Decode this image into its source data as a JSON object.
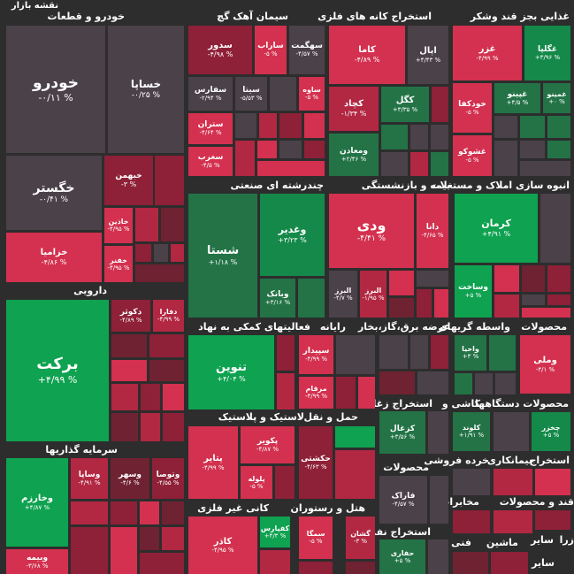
{
  "header": {
    "title": "نقشه بازار"
  },
  "sectors": [
    {
      "name": "sec-auto",
      "label": "خودرو و قطعات"
    },
    {
      "name": "sec-cement",
      "label": "سیمان آهک گچ"
    },
    {
      "name": "sec-metals",
      "label": "استخراج کانه های فلزی"
    },
    {
      "name": "sec-food",
      "label": "غذایی بجز قند وشکر"
    },
    {
      "name": "sec-chemical",
      "label": "چندرشته ای صنعتی"
    },
    {
      "name": "sec-insurance",
      "label": "بیمه و بازنشستگی"
    },
    {
      "name": "sec-realestate",
      "label": "انبوه سازی املاک و مستغلات"
    },
    {
      "name": "sec-pharma",
      "label": "دارویی"
    },
    {
      "name": "sec-support",
      "label": "فعالیتهای کمکی به نهاد"
    },
    {
      "name": "sec-computer",
      "label": "رایانه"
    },
    {
      "name": "sec-utility",
      "label": "عرضه برق،گاز،بخار"
    },
    {
      "name": "sec-brokers",
      "label": "واسطه گریهای"
    },
    {
      "name": "sec-products",
      "label": "محصولات"
    },
    {
      "name": "sec-coal",
      "label": "استخراج زغال"
    },
    {
      "name": "sec-tile",
      "label": "کاشی و"
    },
    {
      "name": "sec-devices",
      "label": "محصولات دستگاهها"
    },
    {
      "name": "sec-rubber",
      "label": "لاستیک و پلاستیک"
    },
    {
      "name": "sec-transport",
      "label": "حمل و نقل"
    },
    {
      "name": "sec-products2",
      "label": "محصولات"
    },
    {
      "name": "sec-retail",
      "label": "خرده فروشی"
    },
    {
      "name": "sec-insure-mining",
      "label": "بیمانکاری"
    },
    {
      "name": "sec-mining2",
      "label": "استخراج"
    },
    {
      "name": "sec-invest",
      "label": "سرمایه گذاریها"
    },
    {
      "name": "sec-nonmetal",
      "label": "کانی غیر فلزی"
    },
    {
      "name": "sec-hotel",
      "label": "هتل و رستوران"
    },
    {
      "name": "sec-oil",
      "label": "استخراج نفت"
    },
    {
      "name": "sec-telecom",
      "label": "مخابرات"
    },
    {
      "name": "sec-sugar",
      "label": "قند و محصولات"
    },
    {
      "name": "sec-tech",
      "label": "فنی و"
    },
    {
      "name": "sec-machinery",
      "label": "ماشین"
    },
    {
      "name": "sec-other1",
      "label": "سایر"
    },
    {
      "name": "sec-other2",
      "label": "زرا"
    },
    {
      "name": "sec-other3",
      "label": "سایر"
    },
    {
      "name": "sec-mahd",
      "label": "محد"
    }
  ],
  "tiles": [
    {
      "name": "khodro",
      "label": "خودرو",
      "pct": "-۰/۱۱ %"
    },
    {
      "name": "khasapa",
      "label": "خساپا",
      "pct": "-۰/۲۵ %"
    },
    {
      "name": "khegostar",
      "label": "خگستر",
      "pct": "-۰/۴۱ %"
    },
    {
      "name": "khebahman",
      "label": "خبهمن",
      "pct": "-۳ %"
    },
    {
      "name": "khazamia",
      "label": "خزامیا",
      "pct": "-۴/۸۶ %"
    },
    {
      "name": "khadizin",
      "label": "خاذین",
      "pct": "-۴/۹۵ %"
    },
    {
      "name": "khafer",
      "label": "خفنر",
      "pct": "-۴/۹۵ %"
    },
    {
      "name": "sedor",
      "label": "سدور",
      "pct": "-۴/۹۸ %"
    },
    {
      "name": "sarab",
      "label": "ساراب",
      "pct": "-۵ %"
    },
    {
      "name": "sahkmat",
      "label": "سهگمت",
      "pct": "-۴/۵۷ %"
    },
    {
      "name": "safars",
      "label": "سفارس",
      "pct": "-۲/۹۴ %"
    },
    {
      "name": "sita",
      "label": "سیتا",
      "pct": "-۵/۵۳ %"
    },
    {
      "name": "saveh",
      "label": "ساوه",
      "pct": "-۵ %"
    },
    {
      "name": "saten",
      "label": "ستران",
      "pct": "-۴/۶۴ %"
    },
    {
      "name": "sefarb",
      "label": "سغرب",
      "pct": "-۴/۵ %"
    },
    {
      "name": "kama",
      "label": "کاما",
      "pct": "-۴/۸۹ %"
    },
    {
      "name": "apal",
      "label": "اپال",
      "pct": "+۴/۴۳ %"
    },
    {
      "name": "kachad",
      "label": "کچاد",
      "pct": "-۱/۳۴ %"
    },
    {
      "name": "kegel",
      "label": "کگل",
      "pct": "+۳/۳۵ %"
    },
    {
      "name": "madan",
      "label": "ومعادن",
      "pct": "+۲/۴۶ %"
    },
    {
      "name": "ghazar",
      "label": "غزر",
      "pct": "-۴/۹۹ %"
    },
    {
      "name": "ghegela",
      "label": "غگلپا",
      "pct": "+۳/۹۶ %"
    },
    {
      "name": "ghpino",
      "label": "غپینو",
      "pct": "+۴/۵ %"
    },
    {
      "name": "ghmino",
      "label": "غمینو",
      "pct": "+۰ %"
    },
    {
      "name": "khodkafa",
      "label": "خودکفا",
      "pct": "-۵ %"
    },
    {
      "name": "ghshoko",
      "label": "غشوکو",
      "pct": "-۵ %"
    },
    {
      "name": "shasta",
      "label": "شستا",
      "pct": "+۱/۱۸ %"
    },
    {
      "name": "ghadir",
      "label": "وغدیر",
      "pct": "+۳/۲۳ %"
    },
    {
      "name": "vabank",
      "label": "وبانک",
      "pct": "+۳/۱۶ %"
    },
    {
      "name": "vedi",
      "label": "ودی",
      "pct": "-۴/۴۱ %"
    },
    {
      "name": "dana",
      "label": "دانا",
      "pct": "-۴/۶۵ %"
    },
    {
      "name": "albrz",
      "label": "البرز",
      "pct": "-۱/۹۵ %"
    },
    {
      "name": "varz",
      "label": "البرز",
      "pct": "-۴/۷ %"
    },
    {
      "name": "kerman",
      "label": "کرمان",
      "pct": "+۴/۹۱ %"
    },
    {
      "name": "vasakht",
      "label": "وساخت",
      "pct": "+۵ %"
    },
    {
      "name": "barkat",
      "label": "برکت",
      "pct": "+۴/۹۹ %"
    },
    {
      "name": "dkosar",
      "label": "دکوثر",
      "pct": "-۴/۸۹ %"
    },
    {
      "name": "dfara",
      "label": "دفارا",
      "pct": "-۴/۹۹ %"
    },
    {
      "name": "tavin",
      "label": "تنوین",
      "pct": "+۴/۰۴ %"
    },
    {
      "name": "sepidar",
      "label": "سپیدار",
      "pct": "-۴/۹۹ %"
    },
    {
      "name": "meragham",
      "label": "مرقام",
      "pct": "-۴/۹۹ %"
    },
    {
      "name": "vahia",
      "label": "واحیا",
      "pct": "+۳ %"
    },
    {
      "name": "vamli",
      "label": "وملی",
      "pct": "-۴/۱ %"
    },
    {
      "name": "kazghal",
      "label": "کزغال",
      "pct": "+۳/۵۶ %"
    },
    {
      "name": "kalond",
      "label": "کلوند",
      "pct": "+۱/۹۱ %"
    },
    {
      "name": "chekhar",
      "label": "چخزر",
      "pct": "+۵ %"
    },
    {
      "name": "pakvir",
      "label": "پکویر",
      "pct": "-۴/۸۷ %"
    },
    {
      "name": "petayer",
      "label": "پتایر",
      "pct": "-۴/۹۹ %"
    },
    {
      "name": "peloleh",
      "label": "پلوله",
      "pct": "-۵ %"
    },
    {
      "name": "hakshti",
      "label": "حکشتی",
      "pct": "-۴/۶۳ %"
    },
    {
      "name": "faraak",
      "label": "فاراک",
      "pct": "-۴/۵۷ %"
    },
    {
      "name": "vakharzm",
      "label": "وخارزم",
      "pct": "+۴/۸۷ %"
    },
    {
      "name": "vasapa",
      "label": "وساپا",
      "pct": "-۴/۹۱ %"
    },
    {
      "name": "vasahr",
      "label": "وسهر",
      "pct": "-۴/۶ %"
    },
    {
      "name": "vtosa",
      "label": "وتوصا",
      "pct": "-۴/۵۵ %"
    },
    {
      "name": "vabime",
      "label": "وبیمه",
      "pct": "-۳/۶۸ %"
    },
    {
      "name": "kafipars",
      "label": "کفپارس",
      "pct": "+۴/۳ %"
    },
    {
      "name": "kader",
      "label": "کاذر",
      "pct": "-۴/۹۵ %"
    },
    {
      "name": "semga",
      "label": "سمگا",
      "pct": "-۵ %"
    },
    {
      "name": "kashan",
      "label": "گشان",
      "pct": "-۳ %"
    },
    {
      "name": "hafari",
      "label": "حفاری",
      "pct": "+۵ %"
    }
  ]
}
